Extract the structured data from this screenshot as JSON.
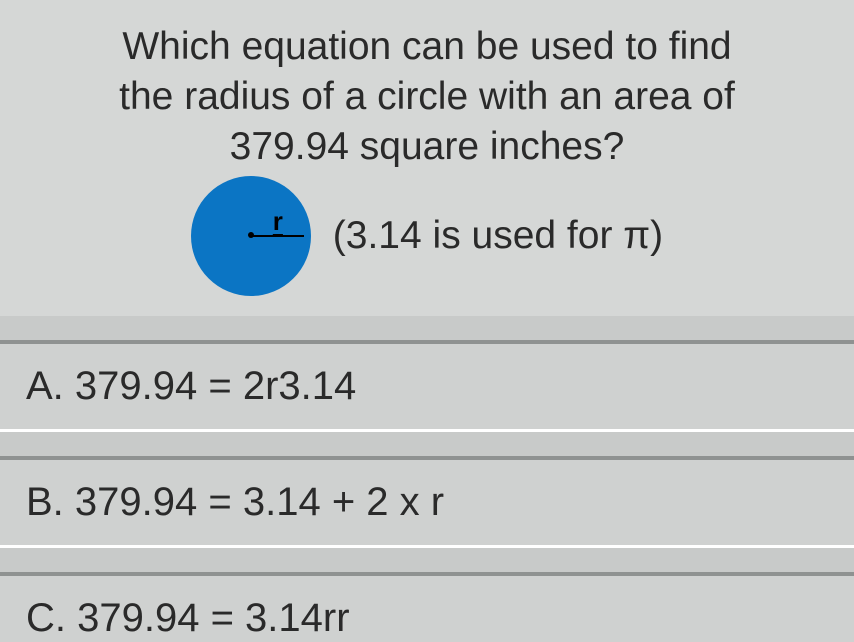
{
  "question": {
    "line1": "Which equation can be used to find",
    "line2": "the radius of a circle with an area of",
    "line3": "379.94 square inches?",
    "line4": "(3.14 is used for π)"
  },
  "circle": {
    "fill_color": "#0b75c4",
    "radius_label": "r"
  },
  "answers": [
    {
      "label": "A.",
      "text": "379.94 = 2r3.14"
    },
    {
      "label": "B.",
      "text": "379.94 = 3.14 + 2 x r"
    },
    {
      "label": "C.",
      "text": "379.94 = 3.14rr"
    }
  ],
  "styling": {
    "background_color": "#c8cac9",
    "question_bg": "#d5d7d6",
    "answer_bg": "#cfd1d0",
    "answer_top_border": "#8f9291",
    "answer_bottom_border": "#ffffff",
    "text_color": "#2a2a2a",
    "question_fontsize": 39,
    "answer_fontsize": 40
  }
}
